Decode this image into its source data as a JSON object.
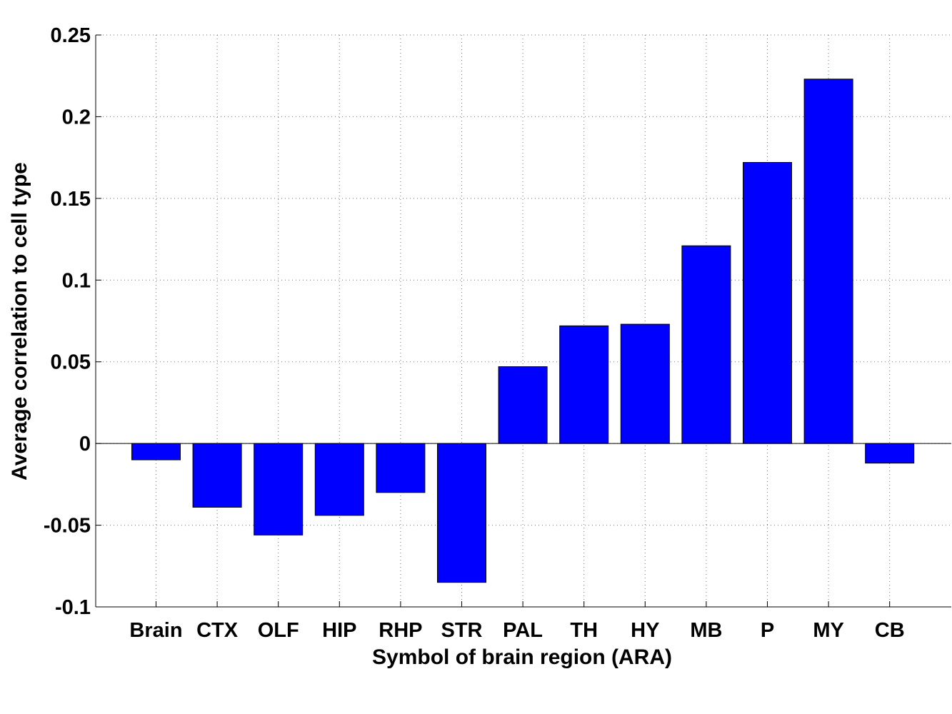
{
  "chart_data": {
    "type": "bar",
    "categories": [
      "Brain",
      "CTX",
      "OLF",
      "HIP",
      "RHP",
      "STR",
      "PAL",
      "TH",
      "HY",
      "MB",
      "P",
      "MY",
      "CB"
    ],
    "values": [
      -0.01,
      -0.039,
      -0.056,
      -0.044,
      -0.03,
      -0.085,
      0.047,
      0.072,
      0.073,
      0.121,
      0.172,
      0.223,
      -0.012
    ],
    "xlabel": "Symbol of brain region (ARA)",
    "ylabel": "Average correlation to cell type",
    "ylim": [
      -0.1,
      0.25
    ],
    "yticks": [
      -0.1,
      -0.05,
      0,
      0.05,
      0.1,
      0.15,
      0.2,
      0.25
    ],
    "ytick_labels": [
      "-0.1",
      "-0.05",
      "0",
      "0.05",
      "0.1",
      "0.15",
      "0.2",
      "0.25"
    ],
    "grid": true,
    "bar_color": "#0000ff"
  }
}
